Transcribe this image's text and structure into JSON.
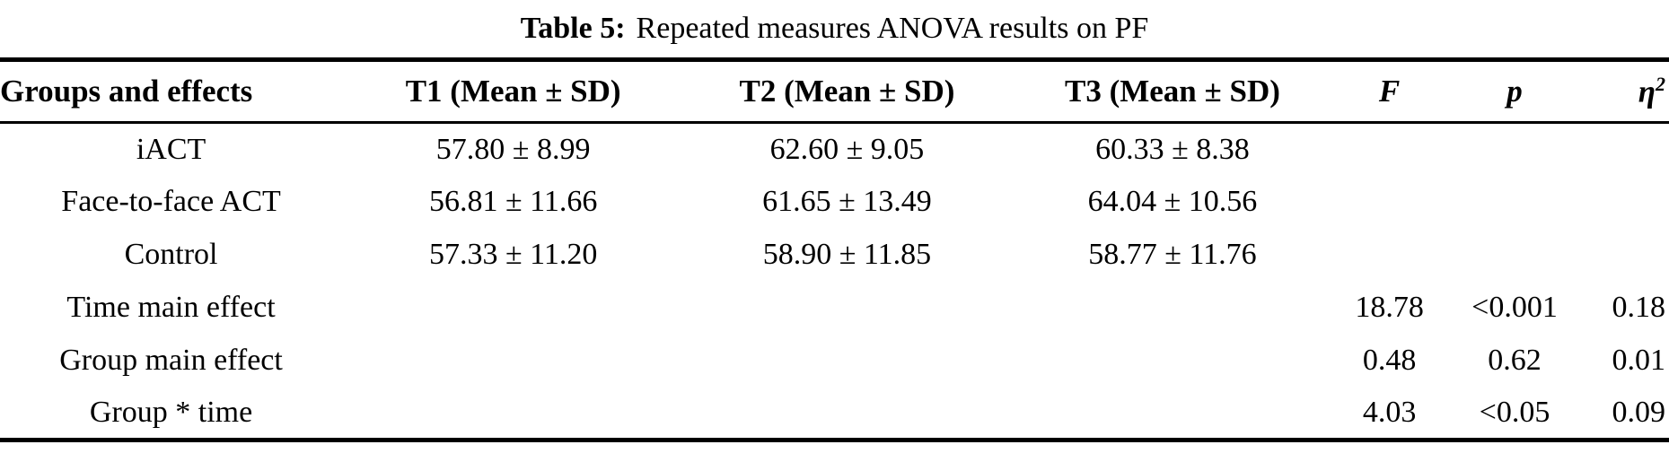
{
  "title": {
    "label": "Table 5:",
    "text": "Repeated measures ANOVA results on PF"
  },
  "table": {
    "headers": {
      "groups": "Groups and effects",
      "t1": "T1 (Mean ± SD)",
      "t2": "T2 (Mean ± SD)",
      "t3": "T3 (Mean ± SD)",
      "f": "F",
      "p": "p",
      "eta_base": "η",
      "eta_sup": "2"
    },
    "rows": [
      {
        "label": "iACT",
        "t1": "57.80 ± 8.99",
        "t2": "62.60 ± 9.05",
        "t3": "60.33 ± 8.38",
        "f": "",
        "p": "",
        "eta2": ""
      },
      {
        "label": "Face-to-face ACT",
        "t1": "56.81 ± 11.66",
        "t2": "61.65 ± 13.49",
        "t3": "64.04 ± 10.56",
        "f": "",
        "p": "",
        "eta2": ""
      },
      {
        "label": "Control",
        "t1": "57.33 ± 11.20",
        "t2": "58.90 ± 11.85",
        "t3": "58.77 ± 11.76",
        "f": "",
        "p": "",
        "eta2": ""
      },
      {
        "label": "Time main effect",
        "t1": "",
        "t2": "",
        "t3": "",
        "f": "18.78",
        "p": "<0.001",
        "eta2": "0.18"
      },
      {
        "label": "Group main effect",
        "t1": "",
        "t2": "",
        "t3": "",
        "f": "0.48",
        "p": "0.62",
        "eta2": "0.01"
      },
      {
        "label": "Group * time",
        "t1": "",
        "t2": "",
        "t3": "",
        "f": "4.03",
        "p": "<0.05",
        "eta2": "0.09"
      }
    ]
  }
}
